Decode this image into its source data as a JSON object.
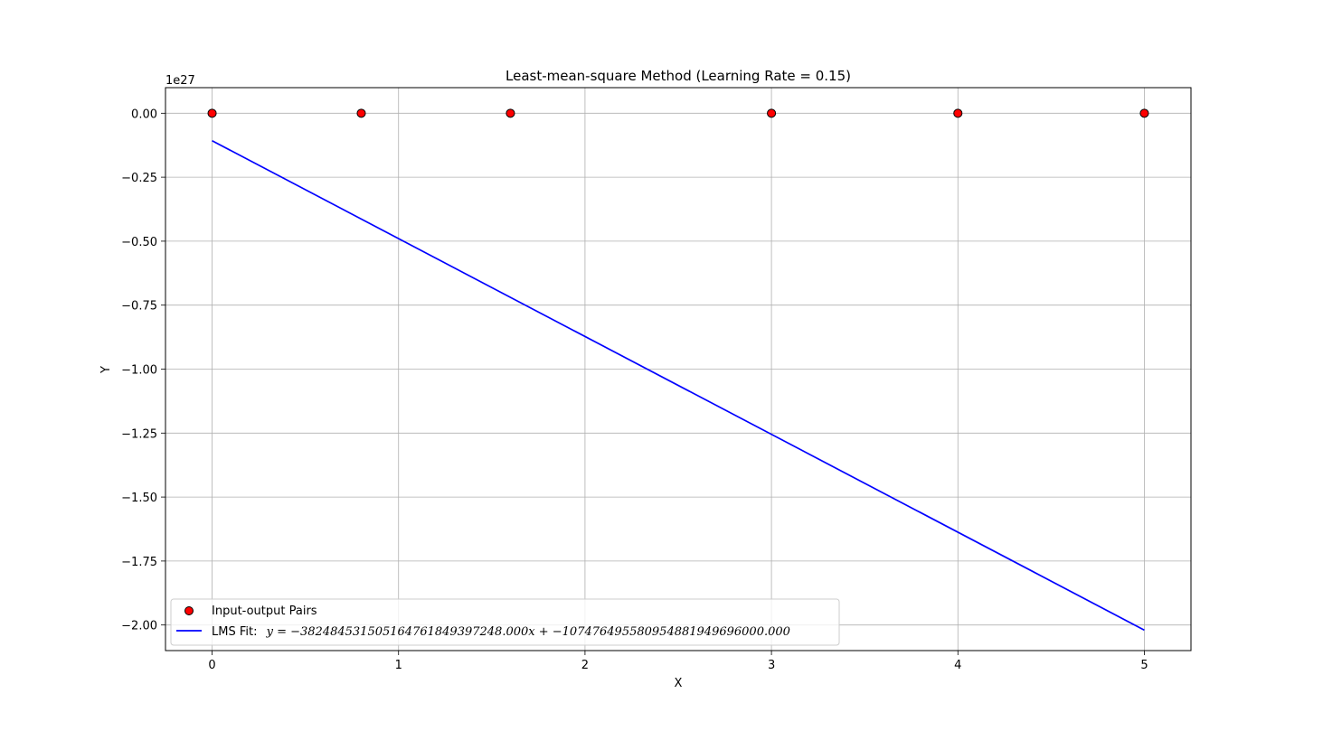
{
  "chart_data": {
    "type": "scatter",
    "title": "Least-mean-square Method (Learning Rate = 0.15)",
    "xlabel": "X",
    "ylabel": "Y",
    "y_offset_text": "1e27",
    "xlim": [
      -0.25,
      5.25
    ],
    "ylim": [
      -2.1,
      0.1
    ],
    "xticks": [
      0,
      1,
      2,
      3,
      4,
      5
    ],
    "xtick_labels": [
      "0",
      "1",
      "2",
      "3",
      "4",
      "5"
    ],
    "yticks": [
      0.0,
      -0.25,
      -0.5,
      -0.75,
      -1.0,
      -1.25,
      -1.5,
      -1.75,
      -2.0
    ],
    "ytick_labels": [
      "0.00",
      "−0.25",
      "−0.50",
      "−0.75",
      "−1.00",
      "−1.25",
      "−1.50",
      "−1.75",
      "−2.00"
    ],
    "grid": true,
    "legend_position": "lower-left",
    "series": [
      {
        "name": "Input-output Pairs",
        "kind": "scatter",
        "color": "#ff0000",
        "edgecolor": "#000000",
        "x": [
          0,
          0.8,
          1.6,
          3,
          4,
          5
        ],
        "y": [
          0,
          0,
          0,
          0,
          0,
          0
        ]
      },
      {
        "name": "LMS Fit:",
        "equation": "y = −382484531505164761849397248.000x + −107476495580954881949696000.000",
        "kind": "line",
        "color": "#0000ff",
        "x": [
          0,
          5
        ],
        "y": [
          -0.107476,
          -2.019899
        ]
      }
    ]
  }
}
